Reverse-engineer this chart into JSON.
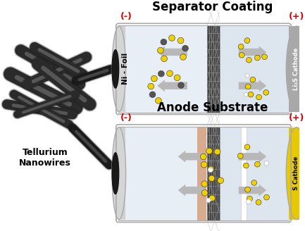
{
  "bg_color": "#ffffff",
  "top_battery": {
    "title": "Separator Coating",
    "minus_label": "(-)",
    "plus_label": "(+)",
    "anode_label": "Ni - Foil",
    "cathode_label": "Li₂S Cathode",
    "cathode_color": "#a8a8a8",
    "interior_color_left": "#e8eef5",
    "interior_color_right": "#dde5ef"
  },
  "bottom_battery": {
    "title": "Anode Substrate",
    "minus_label": "(-)",
    "plus_label": "(+)",
    "cathode_label": "S Cathode",
    "cathode_color": "#e8c800",
    "interior_color_left": "#e8eef5",
    "interior_color_right": "#dde5ef",
    "li_layer_color": "#d4956a"
  },
  "nanowire_label": "Tellurium\nNanowires"
}
